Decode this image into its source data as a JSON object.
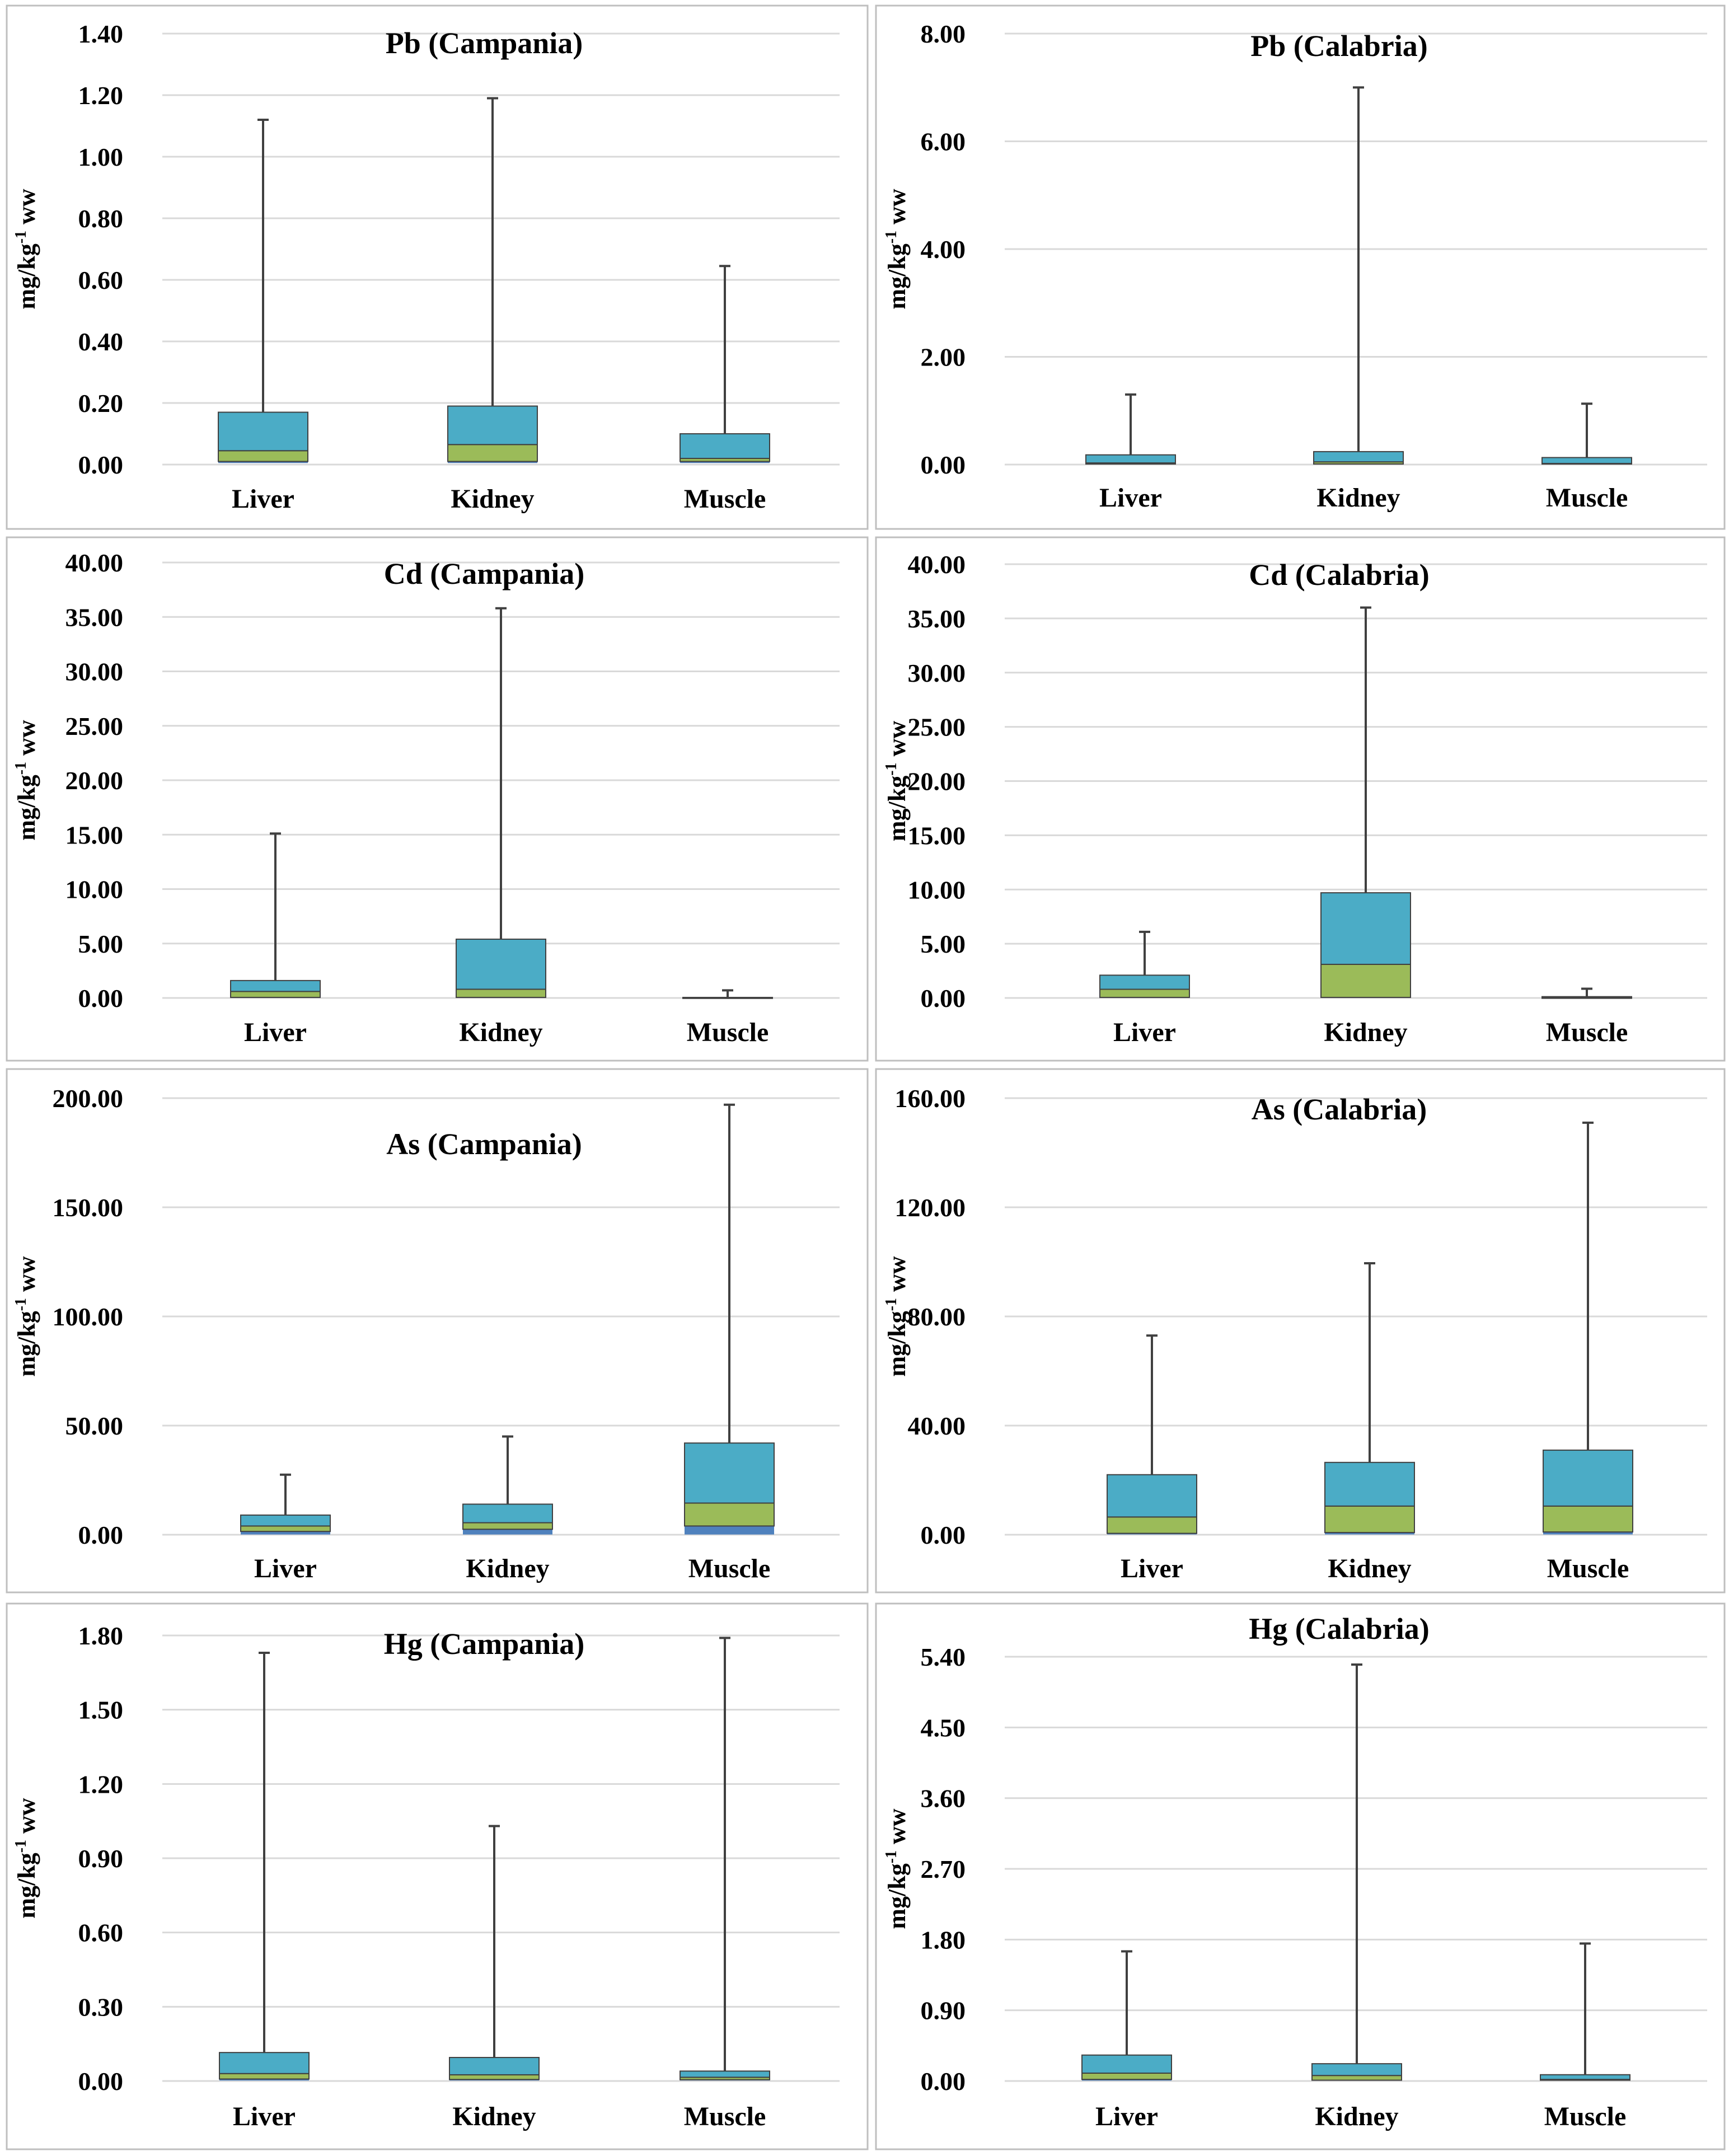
{
  "colors": {
    "upper_box": "#4bacc6",
    "lower_box": "#9bbb59",
    "base_box": "#4f81bd",
    "whisker": "#404040",
    "gridline": "#d9d9d9",
    "panel_border": "#bfbfbf"
  },
  "ylabel_parts": {
    "pre": "mg/kg",
    "sup": "-1",
    "post": " ww"
  },
  "chart_data": [
    {
      "type": "stacked-bar-boxplot",
      "title": "Pb (Campania)",
      "categories": [
        "Liver",
        "Kidney",
        "Muscle"
      ],
      "yticks": [
        "0.00",
        "0.20",
        "0.40",
        "0.60",
        "0.80",
        "1.00",
        "1.20",
        "1.40"
      ],
      "ylim": [
        0,
        1.4
      ],
      "min": [
        0.005,
        0.005,
        0.005
      ],
      "q1": [
        0.01,
        0.01,
        0.01
      ],
      "median": [
        0.045,
        0.065,
        0.02
      ],
      "q3": [
        0.17,
        0.19,
        0.1
      ],
      "max": [
        1.12,
        1.19,
        0.645
      ]
    },
    {
      "type": "stacked-bar-boxplot",
      "title": "Pb (Calabria)",
      "categories": [
        "Liver",
        "Kidney",
        "Muscle"
      ],
      "yticks": [
        "0.00",
        "2.00",
        "4.00",
        "6.00",
        "8.00"
      ],
      "ylim": [
        0,
        8
      ],
      "min": [
        0.005,
        0.005,
        0.005
      ],
      "q1": [
        0.01,
        0.01,
        0.01
      ],
      "median": [
        0.03,
        0.05,
        0.02
      ],
      "q3": [
        0.18,
        0.24,
        0.13
      ],
      "max": [
        1.3,
        7.0,
        1.13
      ]
    },
    {
      "type": "stacked-bar-boxplot",
      "title": "Cd (Campania)",
      "categories": [
        "Liver",
        "Kidney",
        "Muscle"
      ],
      "yticks": [
        "0.00",
        "5.00",
        "10.00",
        "15.00",
        "20.00",
        "25.00",
        "30.00",
        "35.00",
        "40.00"
      ],
      "ylim": [
        0,
        40
      ],
      "min": [
        0.01,
        0.01,
        0.0
      ],
      "q1": [
        0.05,
        0.05,
        0.0
      ],
      "median": [
        0.6,
        0.8,
        0.01
      ],
      "q3": [
        1.6,
        5.4,
        0.05
      ],
      "max": [
        15.1,
        35.8,
        0.7
      ]
    },
    {
      "type": "stacked-bar-boxplot",
      "title": "Cd (Calabria)",
      "categories": [
        "Liver",
        "Kidney",
        "Muscle"
      ],
      "yticks": [
        "0.00",
        "5.00",
        "10.00",
        "15.00",
        "20.00",
        "25.00",
        "30.00",
        "35.00",
        "40.00"
      ],
      "ylim": [
        0,
        40
      ],
      "min": [
        0.01,
        0.01,
        0.0
      ],
      "q1": [
        0.05,
        0.05,
        0.0
      ],
      "median": [
        0.8,
        3.1,
        0.02
      ],
      "q3": [
        2.1,
        9.7,
        0.12
      ],
      "max": [
        6.1,
        36.0,
        0.85
      ]
    },
    {
      "type": "stacked-bar-boxplot",
      "title": "As (Campania)",
      "categories": [
        "Liver",
        "Kidney",
        "Muscle"
      ],
      "yticks": [
        "0.00",
        "50.00",
        "100.00",
        "150.00",
        "200.00"
      ],
      "ylim": [
        0,
        200
      ],
      "min": [
        0.1,
        0.1,
        0.1
      ],
      "q1": [
        1.5,
        2.5,
        4.0
      ],
      "median": [
        4.0,
        5.5,
        14.5
      ],
      "q3": [
        9.0,
        14.0,
        42.0
      ],
      "max": [
        27.5,
        45.0,
        197.0
      ]
    },
    {
      "type": "stacked-bar-boxplot",
      "title": "As (Calabria)",
      "categories": [
        "Liver",
        "Kidney",
        "Muscle"
      ],
      "yticks": [
        "0.00",
        "40.00",
        "80.00",
        "120.00",
        "160.00"
      ],
      "ylim": [
        0,
        160
      ],
      "min": [
        0.1,
        0.1,
        0.1
      ],
      "q1": [
        0.5,
        0.8,
        1.0
      ],
      "median": [
        6.5,
        10.5,
        10.5
      ],
      "q3": [
        22.0,
        26.5,
        31.0
      ],
      "max": [
        73.0,
        99.5,
        151.0
      ]
    },
    {
      "type": "stacked-bar-boxplot",
      "title": "Hg (Campania)",
      "categories": [
        "Liver",
        "Kidney",
        "Muscle"
      ],
      "yticks": [
        "0.00",
        "0.30",
        "0.60",
        "0.90",
        "1.20",
        "1.50",
        "1.80"
      ],
      "ylim": [
        0,
        1.8
      ],
      "min": [
        0.002,
        0.002,
        0.002
      ],
      "q1": [
        0.008,
        0.006,
        0.005
      ],
      "median": [
        0.03,
        0.025,
        0.015
      ],
      "q3": [
        0.115,
        0.095,
        0.04
      ],
      "max": [
        1.73,
        1.03,
        1.79
      ]
    },
    {
      "type": "stacked-bar-boxplot",
      "title": "Hg (Calabria)",
      "categories": [
        "Liver",
        "Kidney",
        "Muscle"
      ],
      "yticks": [
        "0.00",
        "0.90",
        "1.80",
        "2.70",
        "3.60",
        "4.50",
        "5.40"
      ],
      "ylim": [
        0,
        5.4
      ],
      "min": [
        0.005,
        0.005,
        0.005
      ],
      "q1": [
        0.02,
        0.01,
        0.01
      ],
      "median": [
        0.1,
        0.07,
        0.02
      ],
      "q3": [
        0.33,
        0.22,
        0.08
      ],
      "max": [
        1.65,
        5.3,
        1.75
      ]
    }
  ]
}
